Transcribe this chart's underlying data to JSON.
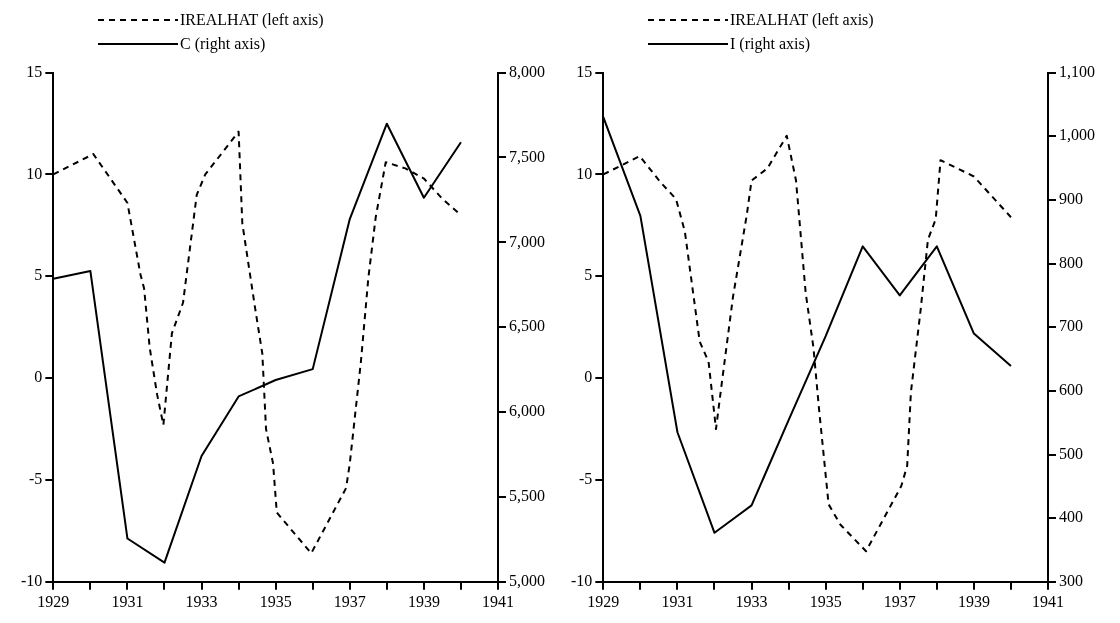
{
  "chart_data": [
    {
      "type": "line",
      "legend": "top",
      "grid": false,
      "xlim": [
        1929,
        1941
      ],
      "xticks": [
        1929,
        {
          "value": 1930,
          "label": null
        },
        1931,
        {
          "value": 1932,
          "label": null
        },
        1933,
        {
          "value": 1934,
          "label": null
        },
        1935,
        {
          "value": 1936,
          "label": null
        },
        1937,
        {
          "value": 1938,
          "label": null
        },
        1939,
        {
          "value": 1940,
          "label": null
        },
        1941
      ],
      "ylim": [
        -10,
        15
      ],
      "yticks": [
        -10,
        -5,
        0,
        5,
        10,
        15
      ],
      "y2lim": [
        5000,
        8000
      ],
      "y2ticks": [
        {
          "value": 5000,
          "label": "5,000"
        },
        {
          "value": 5500,
          "label": "5,500"
        },
        {
          "value": 6000,
          "label": "6,000"
        },
        {
          "value": 6500,
          "label": "6,500"
        },
        {
          "value": 7000,
          "label": "7,000"
        },
        {
          "value": 7500,
          "label": "7,500"
        },
        {
          "value": 8000,
          "label": "8,000"
        }
      ],
      "series": [
        {
          "name": "IREALHAT (left axis)",
          "color": "#000000",
          "line_style": "dashed",
          "x": [
            1929,
            1930.08,
            1931,
            1931.35,
            1931.45,
            1931.6,
            1931.8,
            1931.97,
            1932.2,
            1932.5,
            1932.87,
            1933.1,
            1934,
            1934.1,
            1934.44,
            1934.64,
            1934.74,
            1934.93,
            1935.03,
            1935.96,
            1936.9,
            1937,
            1937.3,
            1937.5,
            1937.7,
            1937.97,
            1938.5,
            1939,
            1939.5,
            1940
          ],
          "values": [
            10,
            11,
            8.6,
            5.1,
            4.4,
            1.5,
            -0.8,
            -2.3,
            2.2,
            3.7,
            9,
            10,
            12.1,
            7.6,
            3.5,
            1.2,
            -2.5,
            -4.2,
            -6.6,
            -8.6,
            -5.4,
            -4.2,
            0.8,
            4.9,
            7.9,
            10.6,
            10.3,
            9.8,
            8.8,
            8
          ]
        },
        {
          "name": "C (right axis)",
          "color": "#000000",
          "line_style": "solid",
          "axis": "y2",
          "x": [
            1929,
            1930,
            1931,
            1932,
            1933,
            1934,
            1935,
            1936,
            1937,
            1938,
            1939,
            1940
          ],
          "values": [
            6785,
            6831,
            5255,
            5113,
            5741,
            6092,
            6189,
            6253,
            7137,
            7699,
            7263,
            7590
          ]
        }
      ]
    },
    {
      "type": "line",
      "legend": "top",
      "grid": false,
      "xlim": [
        1929,
        1941
      ],
      "xticks": [
        1929,
        {
          "value": 1930,
          "label": null
        },
        1931,
        {
          "value": 1932,
          "label": null
        },
        1933,
        {
          "value": 1934,
          "label": null
        },
        1935,
        {
          "value": 1936,
          "label": null
        },
        1937,
        {
          "value": 1938,
          "label": null
        },
        1939,
        {
          "value": 1940,
          "label": null
        },
        1941
      ],
      "ylim": [
        -10,
        15
      ],
      "yticks": [
        -10,
        -5,
        0,
        5,
        10,
        15
      ],
      "y2lim": [
        300,
        1100
      ],
      "y2ticks": [
        300,
        400,
        500,
        600,
        700,
        800,
        900,
        {
          "value": 1000,
          "label": "1,000"
        },
        {
          "value": 1100,
          "label": "1,100"
        }
      ],
      "series": [
        {
          "name": "IREALHAT (left axis)",
          "color": "#000000",
          "line_style": "dashed",
          "x": [
            1929,
            1929.98,
            1930.55,
            1930.96,
            1931.2,
            1931.6,
            1931.84,
            1932.04,
            1932.2,
            1932.5,
            1932.87,
            1933,
            1933.43,
            1933.95,
            1934.2,
            1934.46,
            1934.67,
            1934.82,
            1935.08,
            1935.4,
            1936.09,
            1937.04,
            1937.2,
            1937.3,
            1937.56,
            1937.76,
            1937.97,
            1938.1,
            1939,
            1939.7,
            1940
          ],
          "values": [
            10,
            10.9,
            9.6,
            8.8,
            7.2,
            1.8,
            0.8,
            -2.5,
            -0.2,
            4,
            8,
            9.7,
            10.3,
            11.9,
            9.7,
            4.2,
            1.5,
            -1.5,
            -6.2,
            -7.2,
            -8.5,
            -5.3,
            -4.3,
            -0.7,
            3.3,
            6.8,
            7.8,
            10.7,
            9.9,
            8.5,
            7.9
          ]
        },
        {
          "name": "I (right axis)",
          "color": "#000000",
          "line_style": "solid",
          "axis": "y2",
          "x": [
            1929,
            1930,
            1931,
            1932,
            1933,
            1934,
            1935,
            1936,
            1937,
            1938,
            1939,
            1940
          ],
          "values": [
            1030,
            875,
            535,
            377,
            420,
            554,
            686,
            827,
            750,
            827,
            690,
            639
          ]
        }
      ]
    }
  ]
}
